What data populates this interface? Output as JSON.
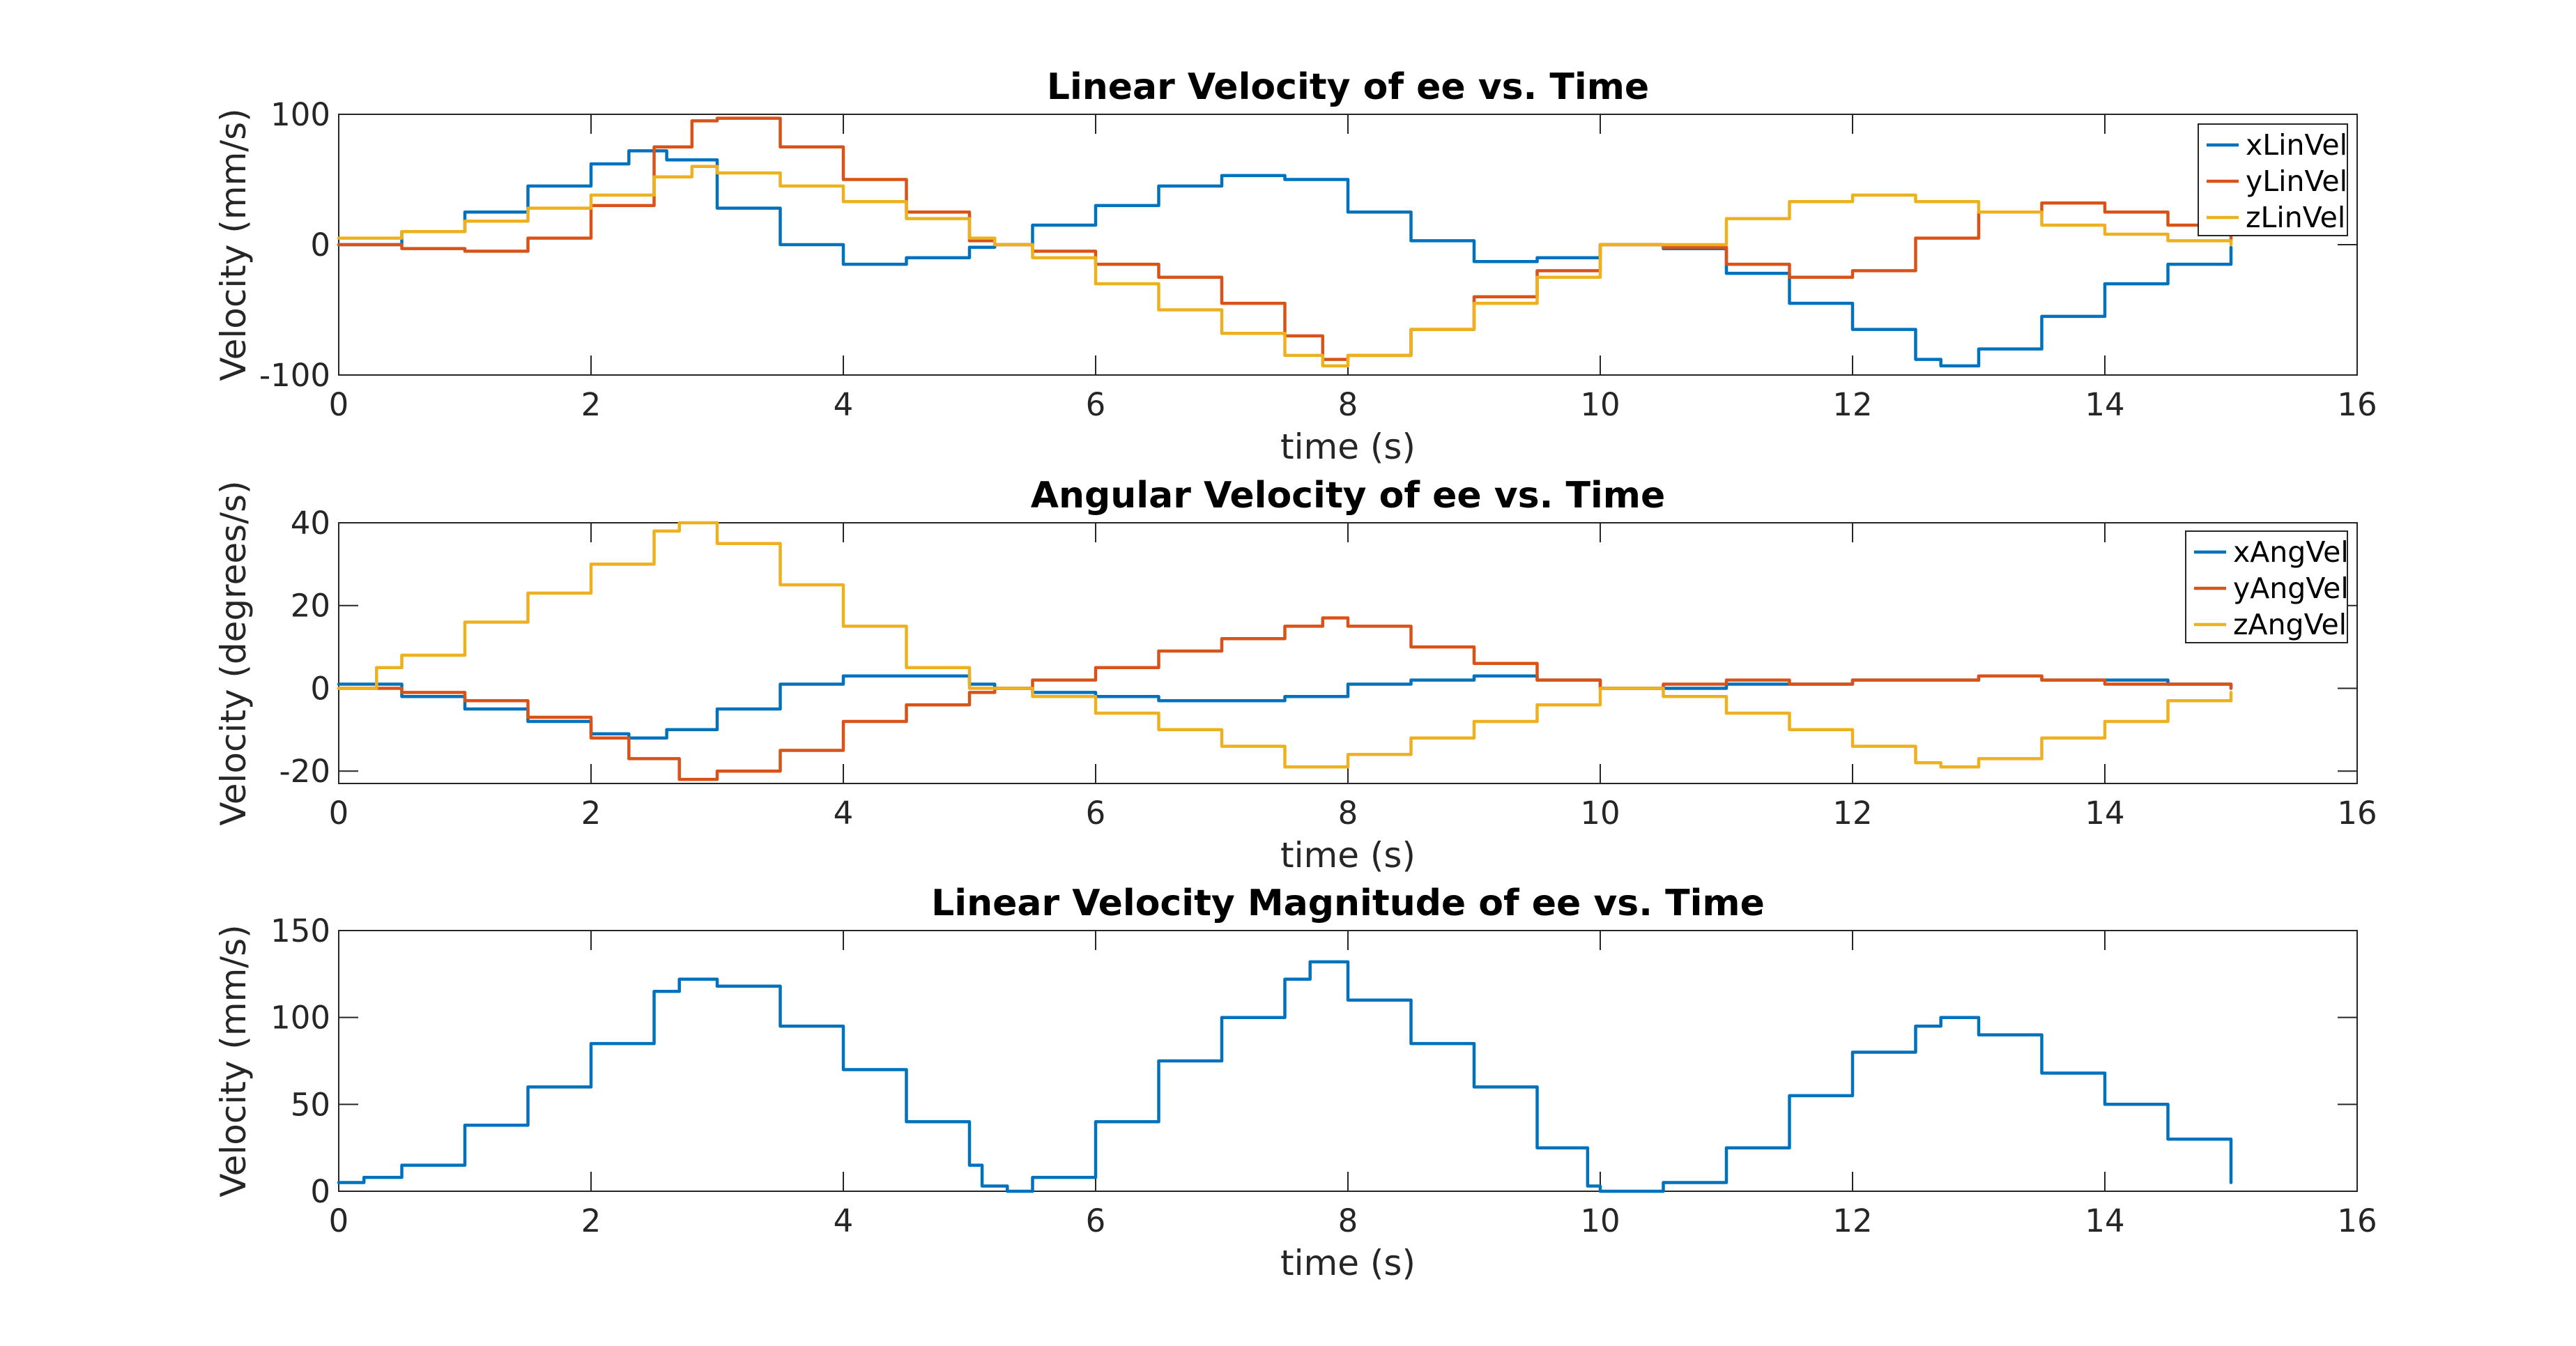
{
  "chart_data": [
    {
      "type": "line",
      "title": "Linear Velocity of ee vs. Time",
      "xlabel": "time (s)",
      "ylabel": "Velocity (mm/s)",
      "xlim": [
        0,
        16
      ],
      "ylim": [
        -100,
        100
      ],
      "xticks": [
        0,
        2,
        4,
        6,
        8,
        10,
        12,
        14,
        16
      ],
      "yticks": [
        -100,
        0,
        100
      ],
      "legend": "top-right",
      "grid": false,
      "series": [
        {
          "name": "xLinVel",
          "color": "#0072BD",
          "x": [
            0,
            0.5,
            1,
            1.5,
            2,
            2.3,
            2.6,
            3,
            3.5,
            4,
            4.5,
            5,
            5.2,
            5.5,
            6,
            6.5,
            7,
            7.5,
            8,
            8.5,
            9,
            9.5,
            10,
            10.5,
            11,
            11.5,
            12,
            12.5,
            12.7,
            13,
            13.5,
            14,
            14.5,
            15
          ],
          "y": [
            0,
            10,
            25,
            45,
            62,
            72,
            65,
            28,
            0,
            -15,
            -10,
            -2,
            0,
            15,
            30,
            45,
            53,
            50,
            25,
            3,
            -13,
            -10,
            0,
            -3,
            -22,
            -45,
            -65,
            -88,
            -93,
            -80,
            -55,
            -30,
            -15,
            -2
          ]
        },
        {
          "name": "yLinVel",
          "color": "#D95319",
          "x": [
            0,
            0.5,
            1,
            1.5,
            2,
            2.5,
            2.8,
            3,
            3.5,
            4,
            4.5,
            5,
            5.2,
            5.5,
            6,
            6.5,
            7,
            7.5,
            7.8,
            8,
            8.5,
            9,
            9.5,
            10,
            10.5,
            11,
            11.5,
            12,
            12.5,
            13,
            13.5,
            14,
            14.5,
            15
          ],
          "y": [
            0,
            -3,
            -5,
            5,
            30,
            75,
            95,
            97,
            75,
            50,
            25,
            3,
            0,
            -5,
            -15,
            -25,
            -45,
            -70,
            -88,
            -85,
            -65,
            -40,
            -20,
            0,
            -2,
            -15,
            -25,
            -20,
            5,
            25,
            32,
            25,
            15,
            2
          ]
        },
        {
          "name": "zLinVel",
          "color": "#EDB120",
          "x": [
            0,
            0.5,
            1,
            1.5,
            2,
            2.5,
            2.8,
            3,
            3.5,
            4,
            4.5,
            5,
            5.2,
            5.5,
            6,
            6.5,
            7,
            7.5,
            7.8,
            8,
            8.5,
            9,
            9.5,
            10,
            10.5,
            10.7,
            11,
            11.5,
            12,
            12.5,
            13,
            13.5,
            14,
            14.5,
            15
          ],
          "y": [
            5,
            10,
            18,
            28,
            38,
            52,
            60,
            55,
            45,
            33,
            20,
            5,
            0,
            -10,
            -30,
            -50,
            -68,
            -85,
            -93,
            -85,
            -65,
            -45,
            -25,
            0,
            0,
            0,
            20,
            33,
            38,
            33,
            25,
            15,
            8,
            3,
            0
          ]
        }
      ]
    },
    {
      "type": "line",
      "title": "Angular Velocity of ee vs. Time",
      "xlabel": "time (s)",
      "ylabel": "Velocity (degrees/s)",
      "xlim": [
        0,
        16
      ],
      "ylim": [
        -23,
        40
      ],
      "xticks": [
        0,
        2,
        4,
        6,
        8,
        10,
        12,
        14,
        16
      ],
      "yticks": [
        -20,
        0,
        20,
        40
      ],
      "legend": "top-right",
      "grid": false,
      "series": [
        {
          "name": "xAngVel",
          "color": "#0072BD",
          "x": [
            0,
            0.5,
            1,
            1.5,
            2,
            2.3,
            2.6,
            3,
            3.5,
            4,
            4.5,
            5,
            5.2,
            5.5,
            6,
            6.5,
            7,
            7.5,
            8,
            8.5,
            9,
            9.5,
            10,
            10.5,
            11,
            11.5,
            12,
            12.5,
            13,
            13.5,
            14,
            14.5,
            15
          ],
          "y": [
            1,
            -2,
            -5,
            -8,
            -11,
            -12,
            -10,
            -5,
            1,
            3,
            3,
            1,
            0,
            -1,
            -2,
            -3,
            -3,
            -2,
            1,
            2,
            3,
            2,
            0,
            0,
            1,
            1,
            2,
            2,
            3,
            2,
            2,
            1,
            0
          ]
        },
        {
          "name": "yAngVel",
          "color": "#D95319",
          "x": [
            0,
            0.5,
            1,
            1.5,
            2,
            2.3,
            2.7,
            3,
            3.5,
            4,
            4.5,
            5,
            5.2,
            5.5,
            6,
            6.5,
            7,
            7.5,
            7.8,
            8,
            8.5,
            9,
            9.5,
            10,
            10.5,
            11,
            11.5,
            12,
            12.5,
            13,
            13.5,
            14,
            14.5,
            15
          ],
          "y": [
            0,
            -1,
            -3,
            -7,
            -12,
            -17,
            -22,
            -20,
            -15,
            -8,
            -4,
            -1,
            0,
            2,
            5,
            9,
            12,
            15,
            17,
            15,
            10,
            6,
            2,
            0,
            1,
            2,
            1,
            2,
            2,
            3,
            2,
            1,
            1,
            0
          ]
        },
        {
          "name": "zAngVel",
          "color": "#EDB120",
          "x": [
            0,
            0.3,
            0.5,
            1,
            1.5,
            2,
            2.5,
            2.7,
            3,
            3.5,
            4,
            4.5,
            5,
            5.2,
            5.5,
            6,
            6.5,
            7,
            7.5,
            7.7,
            8,
            8.5,
            9,
            9.5,
            10,
            10.5,
            11,
            11.5,
            12,
            12.5,
            12.7,
            13,
            13.5,
            14,
            14.5,
            15
          ],
          "y": [
            0,
            5,
            8,
            16,
            23,
            30,
            38,
            40,
            35,
            25,
            15,
            5,
            0,
            0,
            -2,
            -6,
            -10,
            -14,
            -19,
            -19,
            -16,
            -12,
            -8,
            -4,
            0,
            -2,
            -6,
            -10,
            -14,
            -18,
            -19,
            -17,
            -12,
            -8,
            -3,
            -1
          ]
        }
      ]
    },
    {
      "type": "line",
      "title": "Linear Velocity Magnitude of ee vs. Time",
      "xlabel": "time (s)",
      "ylabel": "Velocity (mm/s)",
      "xlim": [
        0,
        16
      ],
      "ylim": [
        0,
        150
      ],
      "xticks": [
        0,
        2,
        4,
        6,
        8,
        10,
        12,
        14,
        16
      ],
      "yticks": [
        0,
        50,
        100,
        150
      ],
      "grid": false,
      "series": [
        {
          "color": "#0072BD",
          "x": [
            0,
            0.2,
            0.5,
            1,
            1.5,
            2,
            2.5,
            2.7,
            3,
            3.5,
            4,
            4.5,
            5,
            5.1,
            5.3,
            5.5,
            6,
            6.5,
            7,
            7.5,
            7.7,
            8,
            8.5,
            9,
            9.5,
            9.9,
            10,
            10.3,
            10.5,
            11,
            11.5,
            12,
            12.5,
            12.7,
            13,
            13.5,
            14,
            14.5,
            15
          ],
          "y": [
            5,
            8,
            15,
            38,
            60,
            85,
            115,
            122,
            118,
            95,
            70,
            40,
            15,
            3,
            0,
            8,
            40,
            75,
            100,
            122,
            132,
            110,
            85,
            60,
            25,
            3,
            0,
            0,
            5,
            25,
            55,
            80,
            95,
            100,
            90,
            68,
            50,
            30,
            5
          ]
        }
      ]
    }
  ]
}
